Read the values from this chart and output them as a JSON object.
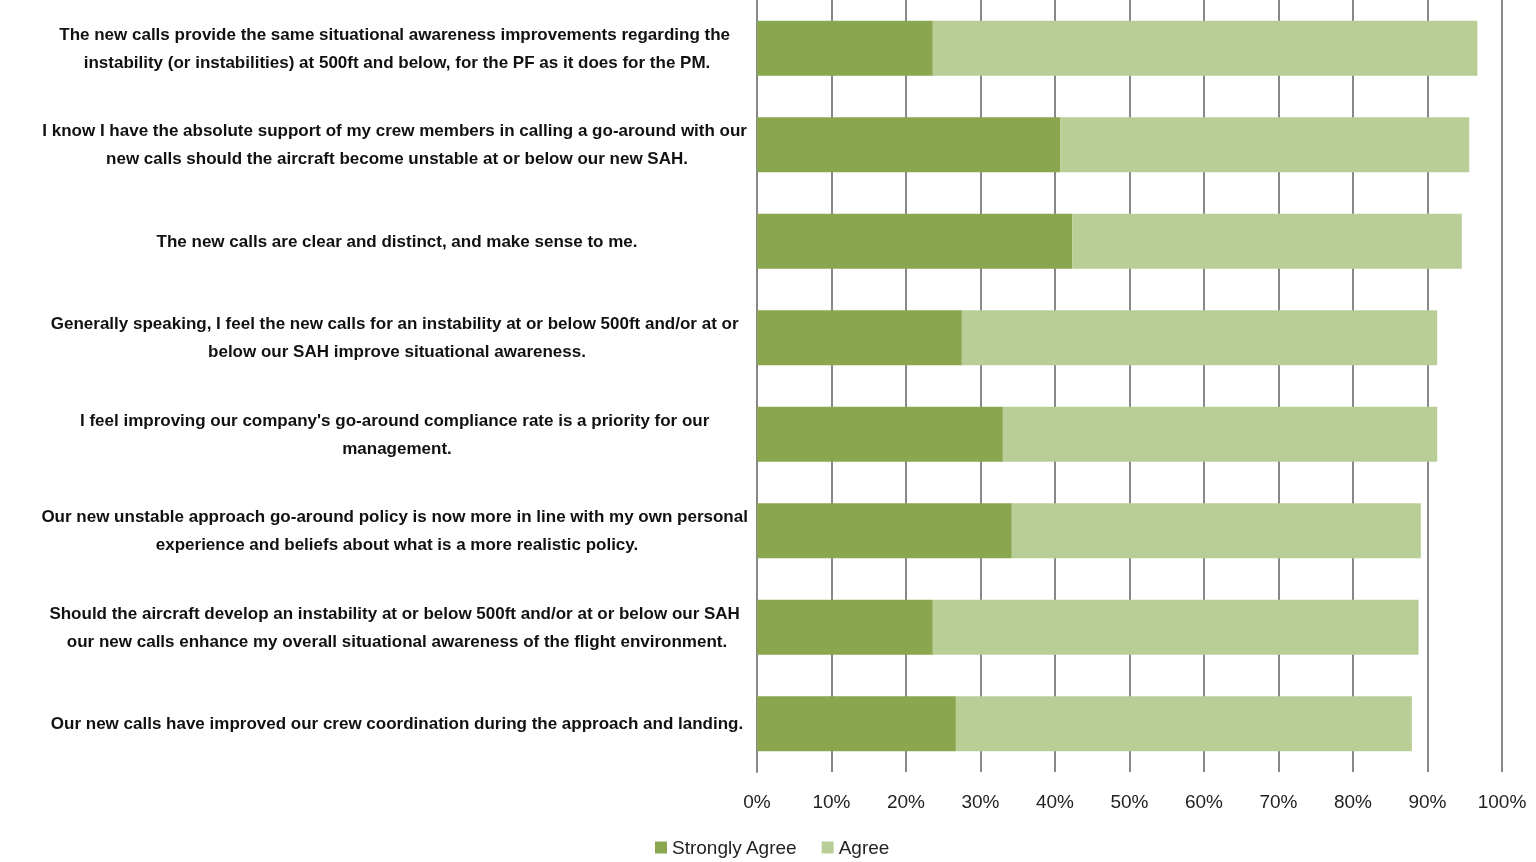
{
  "chart_data": {
    "type": "bar",
    "orientation": "horizontal",
    "stacked": true,
    "categories": [
      "The new calls provide the same situational awareness improvements regarding the instability (or instabilities) at 500ft and below, for the PF as it does for the PM.",
      "I know I have the absolute support of my crew members in calling a go-around with our new calls should the aircraft become unstable at or below our new SAH.",
      "The new calls are clear and distinct, and make sense to me.",
      "Generally speaking, I feel the new calls for an instability at or below 500ft and/or at or below our SAH improve situational awareness.",
      "I feel improving our company's go-around compliance rate is a priority for our management.",
      "Our new unstable approach go-around policy is now more in line with my own personal experience and beliefs about what is a more realistic policy.",
      "Should the aircraft develop an instability at or below 500ft and/or at or below our SAH our new calls enhance my overall situational awareness of the flight environment.",
      "Our new calls have improved our crew coordination during the approach and landing."
    ],
    "series": [
      {
        "name": "Strongly Agree",
        "color": "#8aa64f",
        "values": [
          23.6,
          40.7,
          42.3,
          27.5,
          33.0,
          34.2,
          23.6,
          26.7
        ]
      },
      {
        "name": "Agree",
        "color": "#b9ce97",
        "values": [
          73.1,
          54.9,
          52.3,
          63.8,
          58.3,
          54.9,
          65.2,
          61.2
        ]
      }
    ],
    "xlim": [
      0,
      100
    ],
    "xticks": [
      {
        "value": 0,
        "label": "0%"
      },
      {
        "value": 10,
        "label": "10%"
      },
      {
        "value": 20,
        "label": "20%"
      },
      {
        "value": 30,
        "label": "30%"
      },
      {
        "value": 40,
        "label": "40%"
      },
      {
        "value": 50,
        "label": "50%"
      },
      {
        "value": 60,
        "label": "60%"
      },
      {
        "value": 70,
        "label": "70%"
      },
      {
        "value": 80,
        "label": "80%"
      },
      {
        "value": 90,
        "label": "90%"
      },
      {
        "value": 100,
        "label": "100%"
      }
    ],
    "grid": "x",
    "legend": "bottom"
  }
}
